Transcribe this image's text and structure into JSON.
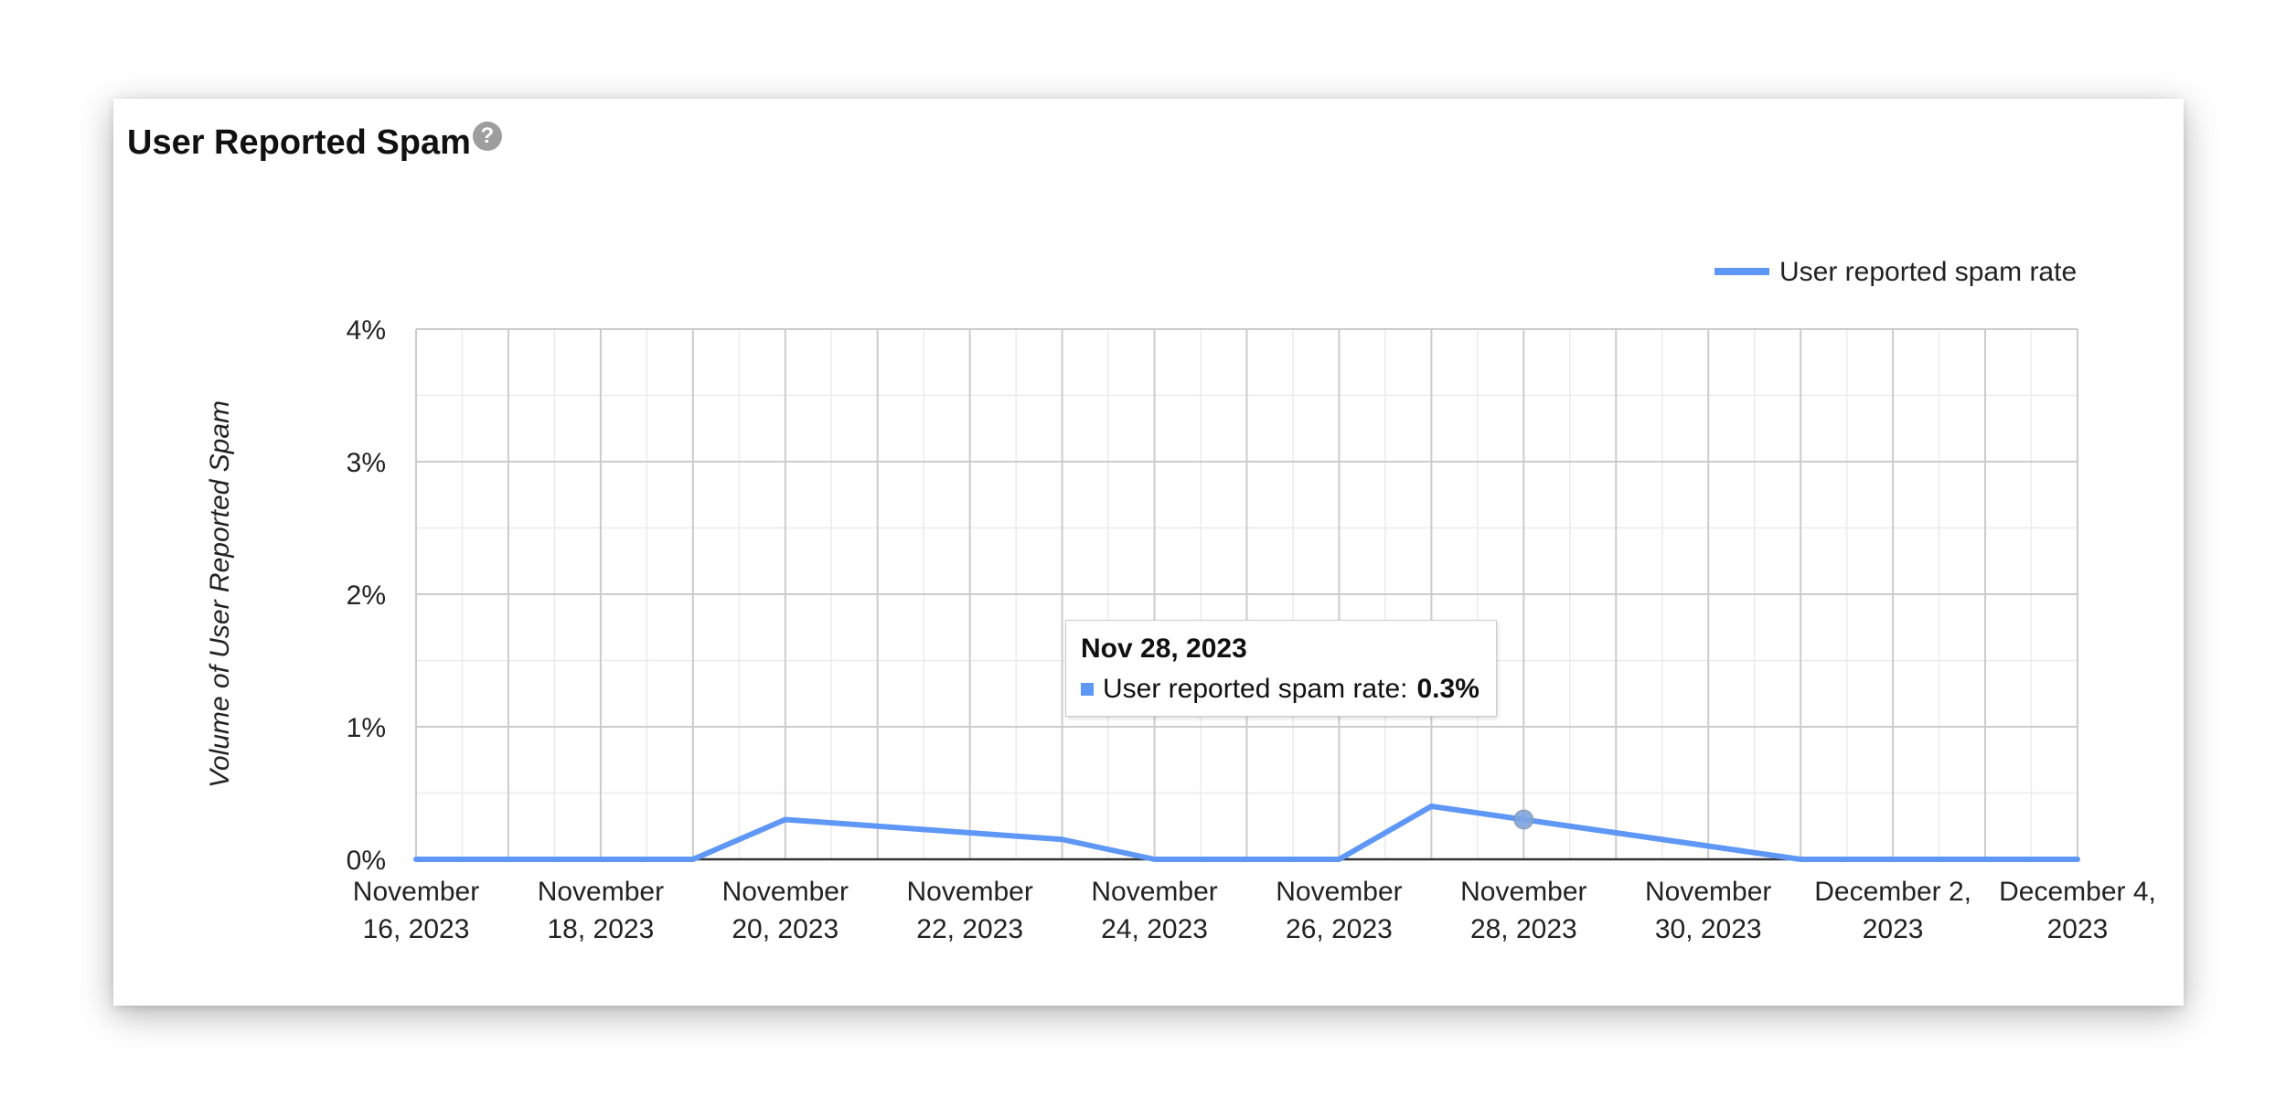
{
  "card": {
    "title": "User Reported Spam",
    "help_glyph": "?"
  },
  "tooltip": {
    "date": "Nov 28, 2023",
    "label": "User reported spam rate:",
    "value": "0.3%"
  },
  "colors": {
    "series": "#5e97f6",
    "grid_major": "#cccccc",
    "grid_minor": "#ebebeb",
    "baseline": "#333333",
    "text": "#222222"
  },
  "chart_data": {
    "type": "line",
    "title": "User Reported Spam",
    "ylabel": "Volume of User Reported Spam",
    "xlabel": "",
    "legend": "top-right",
    "grid": true,
    "ylim": [
      0,
      4
    ],
    "yticks": [
      "0%",
      "1%",
      "2%",
      "3%",
      "4%"
    ],
    "xlim": [
      "2023-11-16",
      "2023-12-04"
    ],
    "xticks": [
      [
        "November",
        "16, 2023"
      ],
      [
        "November",
        "18, 2023"
      ],
      [
        "November",
        "20, 2023"
      ],
      [
        "November",
        "22, 2023"
      ],
      [
        "November",
        "24, 2023"
      ],
      [
        "November",
        "26, 2023"
      ],
      [
        "November",
        "28, 2023"
      ],
      [
        "November",
        "30, 2023"
      ],
      [
        "December 2,",
        "2023"
      ],
      [
        "December 4,",
        "2023"
      ]
    ],
    "series": [
      {
        "name": "User reported spam rate",
        "x": [
          "2023-11-16",
          "2023-11-17",
          "2023-11-18",
          "2023-11-19",
          "2023-11-20",
          "2023-11-21",
          "2023-11-22",
          "2023-11-23",
          "2023-11-24",
          "2023-11-25",
          "2023-11-26",
          "2023-11-27",
          "2023-11-28",
          "2023-11-29",
          "2023-11-30",
          "2023-12-01",
          "2023-12-02",
          "2023-12-03",
          "2023-12-04"
        ],
        "values": [
          0,
          0,
          0,
          0,
          0.3,
          0.25,
          0.2,
          0.15,
          0,
          0,
          0,
          0.4,
          0.3,
          0.2,
          0.1,
          0,
          0,
          0,
          0
        ],
        "unit": "%"
      }
    ],
    "highlight": {
      "x": "2023-11-28",
      "value": 0.3
    }
  }
}
